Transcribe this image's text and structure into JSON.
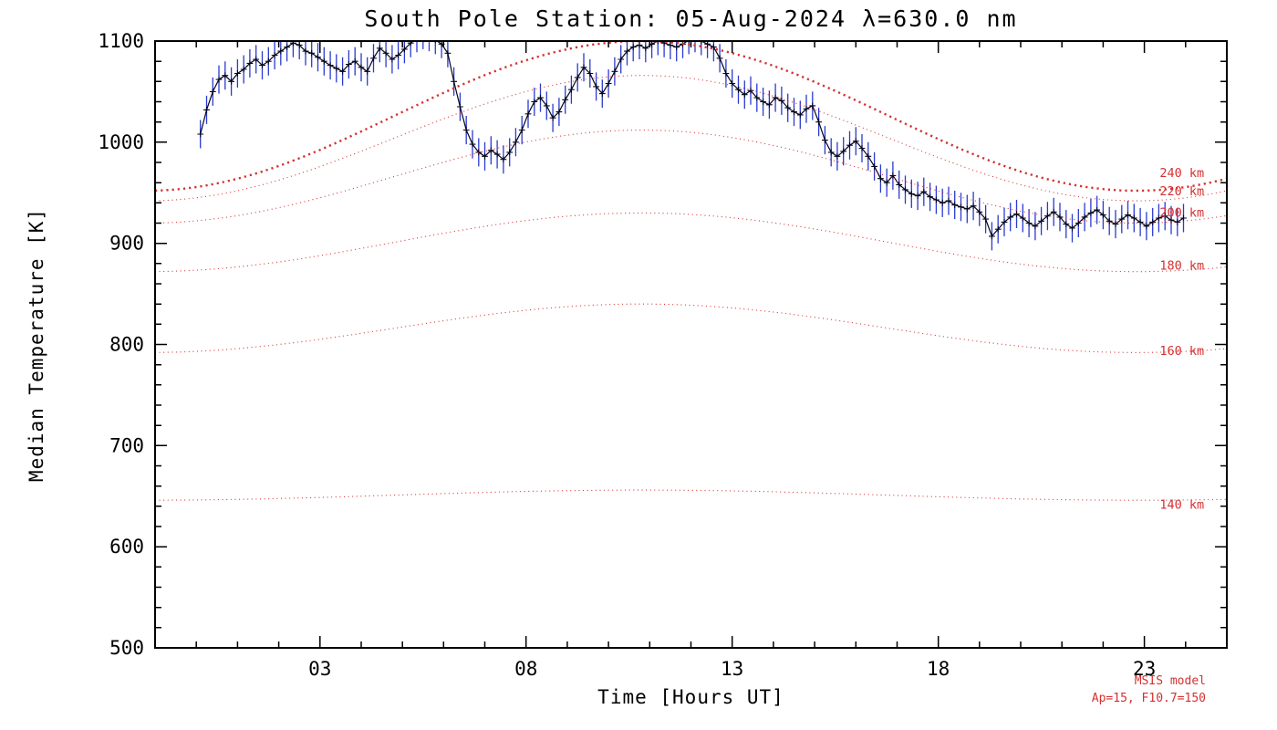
{
  "chart_data": {
    "type": "line",
    "title": "South Pole Station: 05-Aug-2024 λ=630.0 nm",
    "xlabel": "Time [Hours UT]",
    "ylabel": "Median Temperature [K]",
    "xlim": [
      -1,
      25
    ],
    "ylim": [
      500,
      1100
    ],
    "x_major_ticks": [
      3,
      8,
      13,
      18,
      23
    ],
    "x_minor_step": 1,
    "y_major_ticks": [
      500,
      600,
      700,
      800,
      900,
      1000,
      1100
    ],
    "y_minor_step": 20,
    "grid": false,
    "legend_position": "none",
    "colors": {
      "axis": "#000000",
      "data_line": "#05051e",
      "marker": "#05051e",
      "error_bar": "#2a3bd0",
      "model": "#d63030"
    },
    "measured_series": {
      "name": "630.0 nm median temperature",
      "marker": "plus",
      "error_k": 14,
      "points": [
        [
          0.1,
          1008
        ],
        [
          0.25,
          1032
        ],
        [
          0.4,
          1050
        ],
        [
          0.55,
          1062
        ],
        [
          0.7,
          1066
        ],
        [
          0.85,
          1060
        ],
        [
          1.0,
          1068
        ],
        [
          1.15,
          1072
        ],
        [
          1.3,
          1078
        ],
        [
          1.45,
          1082
        ],
        [
          1.6,
          1076
        ],
        [
          1.75,
          1080
        ],
        [
          1.9,
          1086
        ],
        [
          2.05,
          1090
        ],
        [
          2.2,
          1094
        ],
        [
          2.35,
          1098
        ],
        [
          2.5,
          1096
        ],
        [
          2.65,
          1090
        ],
        [
          2.8,
          1088
        ],
        [
          2.95,
          1084
        ],
        [
          3.1,
          1080
        ],
        [
          3.25,
          1076
        ],
        [
          3.4,
          1073
        ],
        [
          3.55,
          1070
        ],
        [
          3.7,
          1077
        ],
        [
          3.85,
          1080
        ],
        [
          4.0,
          1074
        ],
        [
          4.15,
          1070
        ],
        [
          4.3,
          1083
        ],
        [
          4.45,
          1093
        ],
        [
          4.6,
          1088
        ],
        [
          4.75,
          1082
        ],
        [
          4.9,
          1086
        ],
        [
          5.05,
          1092
        ],
        [
          5.2,
          1098
        ],
        [
          5.35,
          1103
        ],
        [
          5.5,
          1106
        ],
        [
          5.65,
          1104
        ],
        [
          5.8,
          1101
        ],
        [
          5.95,
          1097
        ],
        [
          6.1,
          1088
        ],
        [
          6.25,
          1060
        ],
        [
          6.4,
          1035
        ],
        [
          6.55,
          1012
        ],
        [
          6.7,
          998
        ],
        [
          6.85,
          990
        ],
        [
          7.0,
          986
        ],
        [
          7.15,
          992
        ],
        [
          7.3,
          988
        ],
        [
          7.45,
          983
        ],
        [
          7.6,
          990
        ],
        [
          7.75,
          1000
        ],
        [
          7.9,
          1012
        ],
        [
          8.05,
          1028
        ],
        [
          8.2,
          1040
        ],
        [
          8.35,
          1044
        ],
        [
          8.5,
          1036
        ],
        [
          8.65,
          1024
        ],
        [
          8.8,
          1030
        ],
        [
          8.95,
          1042
        ],
        [
          9.1,
          1052
        ],
        [
          9.25,
          1064
        ],
        [
          9.4,
          1074
        ],
        [
          9.55,
          1068
        ],
        [
          9.7,
          1055
        ],
        [
          9.85,
          1048
        ],
        [
          10.0,
          1058
        ],
        [
          10.15,
          1070
        ],
        [
          10.3,
          1082
        ],
        [
          10.45,
          1090
        ],
        [
          10.6,
          1094
        ],
        [
          10.75,
          1096
        ],
        [
          10.9,
          1093
        ],
        [
          11.05,
          1097
        ],
        [
          11.2,
          1100
        ],
        [
          11.35,
          1098
        ],
        [
          11.5,
          1096
        ],
        [
          11.65,
          1094
        ],
        [
          11.8,
          1097
        ],
        [
          11.95,
          1101
        ],
        [
          12.1,
          1103
        ],
        [
          12.25,
          1100
        ],
        [
          12.4,
          1097
        ],
        [
          12.55,
          1094
        ],
        [
          12.7,
          1083
        ],
        [
          12.85,
          1068
        ],
        [
          13.0,
          1058
        ],
        [
          13.15,
          1052
        ],
        [
          13.3,
          1047
        ],
        [
          13.45,
          1051
        ],
        [
          13.6,
          1044
        ],
        [
          13.75,
          1040
        ],
        [
          13.9,
          1037
        ],
        [
          14.05,
          1044
        ],
        [
          14.2,
          1041
        ],
        [
          14.35,
          1034
        ],
        [
          14.5,
          1030
        ],
        [
          14.65,
          1027
        ],
        [
          14.8,
          1033
        ],
        [
          14.95,
          1036
        ],
        [
          15.1,
          1020
        ],
        [
          15.25,
          1002
        ],
        [
          15.4,
          990
        ],
        [
          15.55,
          986
        ],
        [
          15.7,
          991
        ],
        [
          15.85,
          997
        ],
        [
          16.0,
          1001
        ],
        [
          16.15,
          994
        ],
        [
          16.3,
          986
        ],
        [
          16.45,
          976
        ],
        [
          16.6,
          964
        ],
        [
          16.75,
          960
        ],
        [
          16.9,
          967
        ],
        [
          17.05,
          958
        ],
        [
          17.2,
          953
        ],
        [
          17.35,
          949
        ],
        [
          17.5,
          947
        ],
        [
          17.65,
          951
        ],
        [
          17.8,
          946
        ],
        [
          17.95,
          943
        ],
        [
          18.1,
          940
        ],
        [
          18.25,
          942
        ],
        [
          18.4,
          938
        ],
        [
          18.55,
          936
        ],
        [
          18.7,
          934
        ],
        [
          18.85,
          937
        ],
        [
          19.0,
          931
        ],
        [
          19.15,
          924
        ],
        [
          19.3,
          907
        ],
        [
          19.45,
          914
        ],
        [
          19.6,
          921
        ],
        [
          19.75,
          926
        ],
        [
          19.9,
          929
        ],
        [
          20.05,
          925
        ],
        [
          20.2,
          920
        ],
        [
          20.35,
          917
        ],
        [
          20.5,
          922
        ],
        [
          20.65,
          927
        ],
        [
          20.8,
          931
        ],
        [
          20.95,
          926
        ],
        [
          21.1,
          919
        ],
        [
          21.25,
          915
        ],
        [
          21.4,
          920
        ],
        [
          21.55,
          926
        ],
        [
          21.7,
          930
        ],
        [
          21.85,
          933
        ],
        [
          22.0,
          928
        ],
        [
          22.15,
          922
        ],
        [
          22.3,
          919
        ],
        [
          22.45,
          924
        ],
        [
          22.6,
          928
        ],
        [
          22.75,
          925
        ],
        [
          22.9,
          921
        ],
        [
          23.05,
          917
        ],
        [
          23.2,
          921
        ],
        [
          23.35,
          925
        ],
        [
          23.5,
          927
        ],
        [
          23.65,
          923
        ],
        [
          23.8,
          921
        ],
        [
          23.95,
          925
        ]
      ]
    },
    "model_curves": [
      {
        "label": "240 km",
        "mid": 1026,
        "amp": 74,
        "peak_hour": 10.8,
        "bold": true,
        "label_dy_k": 16
      },
      {
        "label": "220 km",
        "mid": 1004,
        "amp": 62,
        "peak_hour": 10.8,
        "bold": false,
        "label_dy_k": 8
      },
      {
        "label": "200 km",
        "mid": 966,
        "amp": 46,
        "peak_hour": 10.8,
        "bold": false,
        "label_dy_k": 9
      },
      {
        "label": "180 km",
        "mid": 901,
        "amp": 29,
        "peak_hour": 10.8,
        "bold": false,
        "label_dy_k": 5
      },
      {
        "label": "160 km",
        "mid": 816,
        "amp": 24,
        "peak_hour": 10.8,
        "bold": false,
        "label_dy_k": 1
      },
      {
        "label": "140 km",
        "mid": 651,
        "amp": 5,
        "peak_hour": 10.8,
        "bold": false,
        "label_dy_k": -5
      }
    ],
    "annotations": [
      "MSIS model",
      "Ap=15, F10.7=150"
    ]
  }
}
